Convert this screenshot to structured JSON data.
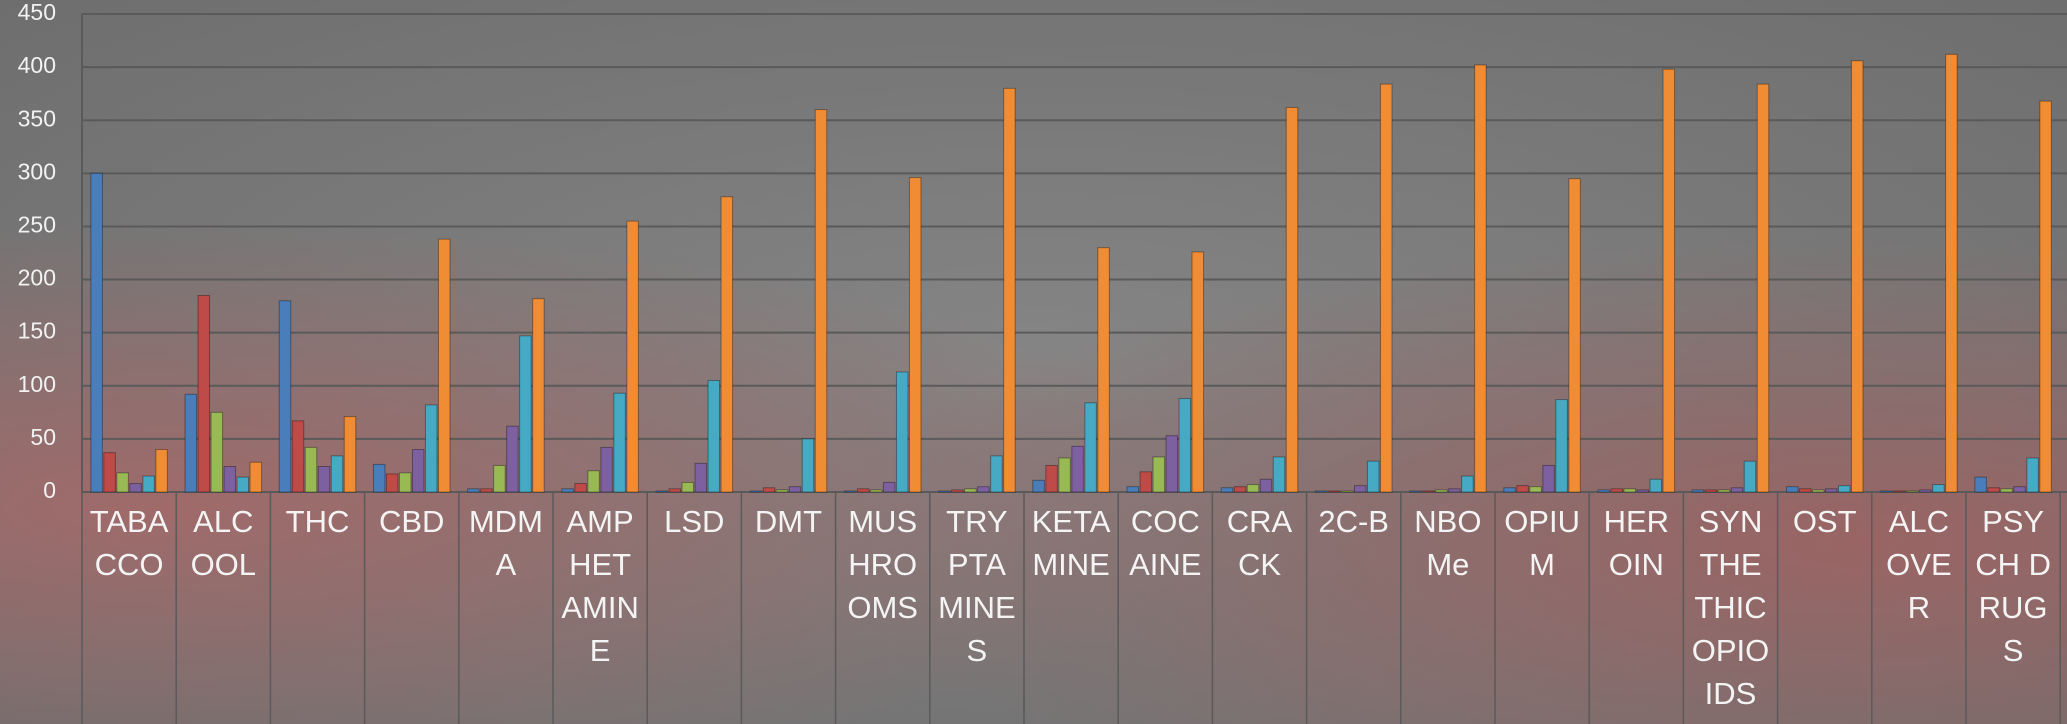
{
  "chart_data": {
    "type": "bar",
    "categories": [
      "TABACCO",
      "ALCOOL",
      "THC",
      "CBD",
      "MDMA",
      "AMPHETAMINE",
      "LSD",
      "DMT",
      "MUSHROOMS",
      "TRYPTAMINES",
      "KETAMINE",
      "COCAINE",
      "CRACK",
      "2C-B",
      "NBOMe",
      "OPIUM",
      "HEROIN",
      "SYNTHETHIC OPIOIDS",
      "OST",
      "ALCOVER",
      "PSYCH DRUGS"
    ],
    "series": [
      {
        "color": "#4a7ebb",
        "values": [
          300,
          92,
          180,
          26,
          3,
          3,
          1,
          1,
          1,
          1,
          11,
          5,
          4,
          1,
          1,
          4,
          2,
          2,
          5,
          1,
          14
        ]
      },
      {
        "color": "#be4b48",
        "values": [
          37,
          185,
          67,
          17,
          3,
          8,
          3,
          4,
          3,
          2,
          25,
          19,
          5,
          1,
          1,
          6,
          3,
          2,
          3,
          1,
          4
        ]
      },
      {
        "color": "#98b954",
        "values": [
          18,
          75,
          42,
          18,
          25,
          20,
          9,
          2,
          2,
          3,
          32,
          33,
          7,
          1,
          2,
          5,
          3,
          2,
          2,
          1,
          3
        ]
      },
      {
        "color": "#7d60a0",
        "values": [
          8,
          24,
          24,
          40,
          62,
          42,
          27,
          5,
          9,
          5,
          43,
          53,
          12,
          6,
          3,
          25,
          2,
          4,
          3,
          2,
          5
        ]
      },
      {
        "color": "#46aac5",
        "values": [
          15,
          14,
          34,
          82,
          147,
          93,
          105,
          50,
          113,
          34,
          84,
          88,
          33,
          29,
          15,
          87,
          12,
          29,
          6,
          7,
          32
        ]
      },
      {
        "color": "#f08c34",
        "values": [
          40,
          28,
          71,
          238,
          182,
          255,
          278,
          360,
          296,
          380,
          230,
          226,
          362,
          384,
          402,
          295,
          398,
          384,
          406,
          412,
          368
        ]
      }
    ],
    "ylim": [
      0,
      450
    ],
    "yticks": [
      0,
      50,
      100,
      150,
      200,
      250,
      300,
      350,
      400,
      450
    ],
    "grid": true
  }
}
